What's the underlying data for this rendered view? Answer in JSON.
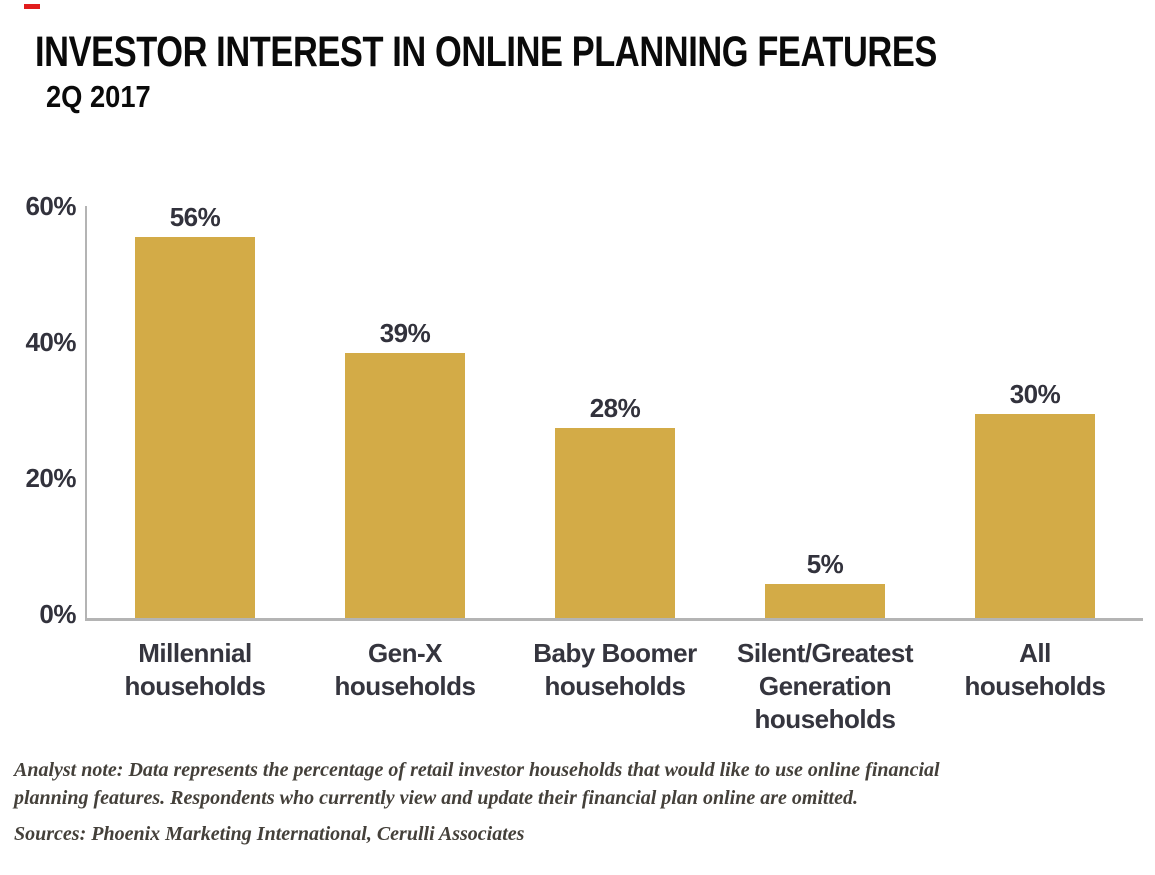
{
  "page": {
    "title": "INVESTOR INTEREST IN ONLINE PLANNING FEATURES",
    "subtitle": "2Q 2017"
  },
  "chart_data": {
    "type": "bar",
    "title": "INVESTOR INTEREST IN ONLINE PLANNING FEATURES",
    "subtitle": "2Q 2017",
    "categories": [
      "Millennial households",
      "Gen-X households",
      "Baby Boomer households",
      "Silent/Greatest Generation households",
      "All households"
    ],
    "category_lines": [
      [
        "Millennial",
        "households"
      ],
      [
        "Gen-X",
        "households"
      ],
      [
        "Baby Boomer",
        "households"
      ],
      [
        "Silent/Greatest",
        "Generation",
        "households"
      ],
      [
        "All",
        "households"
      ]
    ],
    "values": [
      56,
      39,
      28,
      5,
      30
    ],
    "data_labels": [
      "56%",
      "39%",
      "28%",
      "5%",
      "30%"
    ],
    "yticks": [
      {
        "value": 0,
        "label": "0%"
      },
      {
        "value": 20,
        "label": "20%"
      },
      {
        "value": 40,
        "label": "40%"
      },
      {
        "value": 60,
        "label": "60%"
      }
    ],
    "ylim": [
      0,
      60
    ],
    "xlabel": "",
    "ylabel": "",
    "grid": false,
    "legend": "none",
    "bar_color": "#d3ab47",
    "axis_color": "#b4b4b4",
    "label_color": "#32323c",
    "category_label_color": "#35353e"
  },
  "footnotes": {
    "analyst_note_lines": [
      "Analyst note: Data represents the percentage of retail investor households that would like to use online financial",
      "planning features. Respondents who currently view and update their financial plan online are omitted."
    ],
    "sources": "Sources: Phoenix Marketing International, Cerulli Associates"
  },
  "decorations": {
    "red_dash_color": "#e11d1d"
  }
}
